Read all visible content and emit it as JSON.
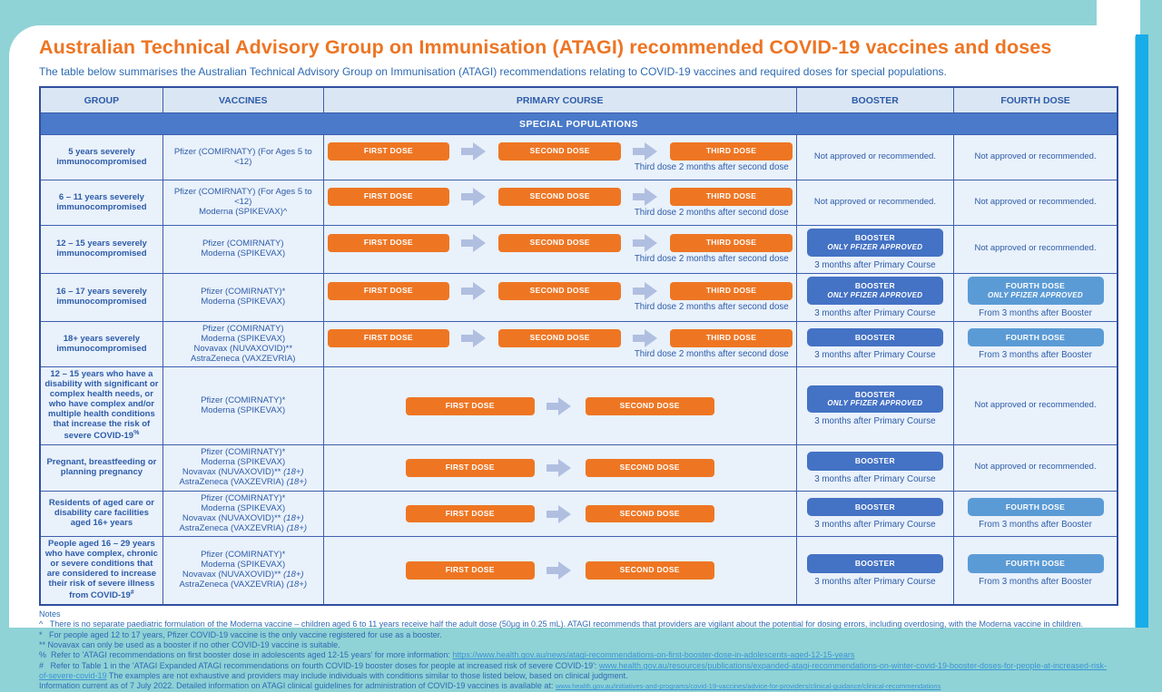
{
  "page": {
    "title": "Australian Technical Advisory Group on Immunisation (ATAGI) recommended COVID-19 vaccines and doses",
    "subtitle": "The table below summarises the Australian Technical Advisory Group on Immunisation (ATAGI) recommendations relating to COVID-19 vaccines and required doses for special populations."
  },
  "colors": {
    "title_orange": "#ed7524",
    "dose_orange": "#ee7623",
    "booster_blue": "#4472c4",
    "fourth_dose_blue": "#5b9bd5",
    "banner_blue": "#4a7ac9",
    "frame_teal": "#8fd3d6",
    "accent_stripe_blue": "#18ace8"
  },
  "table": {
    "headers": [
      "GROUP",
      "VACCINES",
      "PRIMARY COURSE",
      "BOOSTER",
      "FOURTH DOSE"
    ],
    "section_banner": "SPECIAL POPULATIONS",
    "dose_labels": [
      "FIRST DOSE",
      "SECOND DOSE",
      "THIRD DOSE"
    ],
    "rows": [
      {
        "group": "5 years severely immunocompromised",
        "vaccines": [
          "Pfizer (COMIRNATY) (For Ages 5 to <12)"
        ],
        "doses": 3,
        "dose_caption": "Third dose 2 months after second dose",
        "booster": {
          "na": "Not approved or recommended."
        },
        "fourth": {
          "na": "Not approved or recommended."
        }
      },
      {
        "group": "6 – 11 years severely immunocompromised",
        "vaccines": [
          "Pfizer (COMIRNATY) (For Ages 5 to <12)",
          "Moderna (SPIKEVAX)^"
        ],
        "doses": 3,
        "dose_caption": "Third dose 2 months after second dose",
        "booster": {
          "na": "Not approved or recommended."
        },
        "fourth": {
          "na": "Not approved or recommended."
        }
      },
      {
        "group": "12 – 15 years severely immunocompromised",
        "vaccines": [
          "Pfizer (COMIRNATY)",
          "Moderna (SPIKEVAX)"
        ],
        "doses": 3,
        "dose_caption": "Third dose 2 months after second dose",
        "booster": {
          "label": "BOOSTER",
          "sub": "ONLY PFIZER APPROVED",
          "caption": "3 months after Primary Course"
        },
        "fourth": {
          "na": "Not approved or recommended."
        }
      },
      {
        "group": "16 – 17 years severely immunocompromised",
        "vaccines": [
          "Pfizer (COMIRNATY)*",
          "Moderna (SPIKEVAX)"
        ],
        "doses": 3,
        "dose_caption": "Third dose 2 months after second dose",
        "booster": {
          "label": "BOOSTER",
          "sub": "ONLY PFIZER APPROVED",
          "caption": "3 months after Primary Course"
        },
        "fourth": {
          "label": "FOURTH DOSE",
          "sub": "ONLY PFIZER APPROVED",
          "caption": "From 3 months after Booster"
        }
      },
      {
        "group": "18+ years severely immunocompromised",
        "vaccines": [
          "Pfizer (COMIRNATY)",
          "Moderna (SPIKEVAX)",
          "Novavax (NUVAXOVID)**",
          "AstraZeneca (VAXZEVRIA)"
        ],
        "doses": 3,
        "dose_caption": "Third dose 2 months after second dose",
        "booster": {
          "label": "BOOSTER",
          "caption": "3 months after Primary Course"
        },
        "fourth": {
          "label": "FOURTH DOSE",
          "caption": "From 3 months after Booster"
        }
      },
      {
        "group": "12 – 15 years who have a disability with significant or complex health needs, or who have complex and/or multiple health conditions that increase the risk of severe COVID-19",
        "group_sup": "%",
        "vaccines": [
          "Pfizer (COMIRNATY)*",
          "Moderna (SPIKEVAX)"
        ],
        "doses": 2,
        "booster": {
          "label": "BOOSTER",
          "sub": "ONLY PFIZER APPROVED",
          "caption": "3 months after Primary Course"
        },
        "fourth": {
          "na": "Not approved or recommended."
        }
      },
      {
        "group": "Pregnant, breastfeeding or planning pregnancy",
        "vaccines": [
          "Pfizer (COMIRNATY)*",
          "Moderna (SPIKEVAX)",
          "Novavax (NUVAXOVID)** (18+)",
          "AstraZeneca (VAXZEVRIA) (18+)"
        ],
        "doses": 2,
        "booster": {
          "label": "BOOSTER",
          "caption": "3 months after Primary Course"
        },
        "fourth": {
          "na": "Not approved or recommended."
        }
      },
      {
        "group": "Residents of aged care or disability care facilities aged 16+ years",
        "vaccines": [
          "Pfizer (COMIRNATY)*",
          "Moderna (SPIKEVAX)",
          "Novavax (NUVAXOVID)** (18+)",
          "AstraZeneca (VAXZEVRIA) (18+)"
        ],
        "doses": 2,
        "booster": {
          "label": "BOOSTER",
          "caption": "3 months after Primary Course"
        },
        "fourth": {
          "label": "FOURTH DOSE",
          "caption": "From 3 months after Booster"
        }
      },
      {
        "group": "People aged 16 – 29 years who have complex, chronic or severe conditions that are considered to increase their risk of severe illness from COVID-19",
        "group_sup": "#",
        "vaccines": [
          "Pfizer (COMIRNATY)*",
          "Moderna (SPIKEVAX)",
          "Novavax (NUVAXOVID)** (18+)",
          "AstraZeneca (VAXZEVRIA) (18+)"
        ],
        "doses": 2,
        "booster": {
          "label": "BOOSTER",
          "caption": "3 months after Primary Course"
        },
        "fourth": {
          "label": "FOURTH DOSE",
          "caption": "From 3 months after Booster"
        }
      }
    ]
  },
  "notes": {
    "heading": "Notes",
    "lines": [
      {
        "parts": [
          {
            "t": "^   There is no separate paediatric formulation of the Moderna vaccine – children aged 6 to 11 years receive half the adult dose (50µg in 0.25 mL). ATAGI recommends that providers are vigilant about the potential for dosing errors, including overdosing, with the Moderna vaccine in children."
          }
        ]
      },
      {
        "parts": [
          {
            "t": "*   For people aged 12 to 17 years, Pfizer COVID-19 vaccine is the only vaccine registered for use as a booster."
          }
        ]
      },
      {
        "parts": [
          {
            "t": "** Novavax can only be used as a booster if no other COVID-19 vaccine is suitable."
          }
        ]
      },
      {
        "parts": [
          {
            "t": "%  Refer to 'ATAGI recommendations on first booster dose in adolescents aged 12-15 years' for more information: "
          },
          {
            "t": "https://www.health.gov.au/news/atagi-recommendations-on-first-booster-dose-in-adolescents-aged-12-15-years",
            "link": true
          }
        ]
      },
      {
        "parts": [
          {
            "t": "#   Refer to Table 1 in the 'ATAGI Expanded ATAGI recommendations on fourth COVID-19 booster doses for people at increased risk of severe COVID-19': "
          },
          {
            "t": "www.health.gov.au/resources/publications/expanded-atagi-recommendations-on-winter-covid-19-booster-doses-for-people-at-increased-risk-of-severe-covid-19",
            "link": true
          },
          {
            "t": " The examples are not exhaustive and providers may include individuals with conditions similar to those listed below, based on clinical judgment."
          }
        ]
      },
      {
        "parts": [
          {
            "t": "Information current as of 7 July 2022. Detailed information on ATAGI clinical guidelines for administration of COVID-19 vaccines is available at: "
          },
          {
            "t": "www.health.gov.au/initiatives-and-programs/covid-19-vaccines/advice-for-providers/clinical-guidance/clinical-recommendations",
            "link": true,
            "small": true
          }
        ]
      }
    ]
  }
}
